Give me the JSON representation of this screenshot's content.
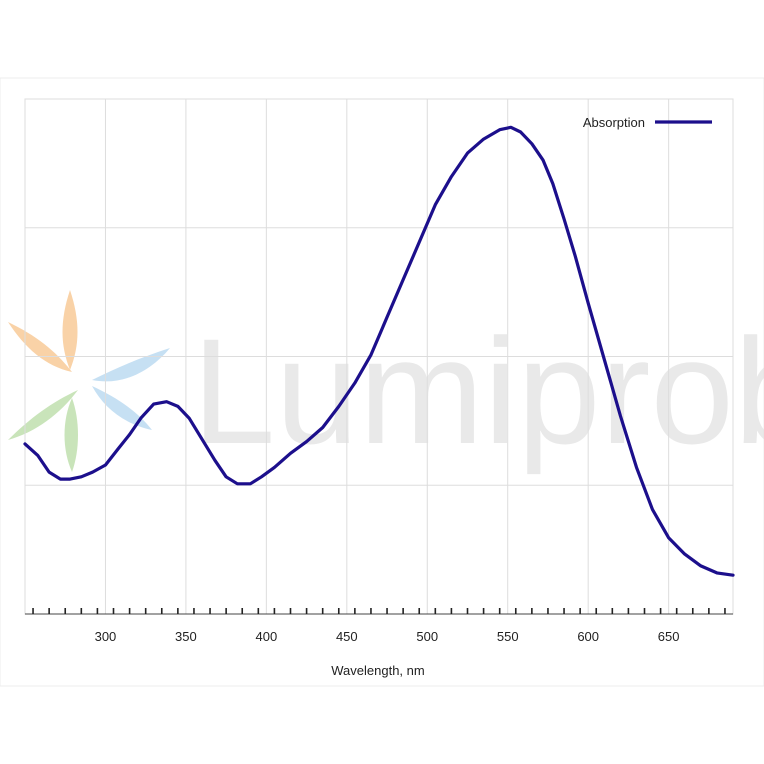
{
  "chart_data": {
    "type": "line",
    "xlabel": "Wavelength, nm",
    "ylabel": "",
    "xlim": [
      250,
      690
    ],
    "ylim": [
      0,
      1
    ],
    "x_ticks": [
      300,
      350,
      400,
      450,
      500,
      550,
      600,
      650
    ],
    "y_gridlines": 4,
    "grid": true,
    "legend_position": "top-right",
    "series": [
      {
        "name": "Absorption",
        "color": "#1c0f8c",
        "x": [
          250,
          258,
          265,
          272,
          278,
          285,
          292,
          300,
          308,
          315,
          322,
          330,
          338,
          345,
          352,
          360,
          368,
          375,
          382,
          390,
          397,
          405,
          415,
          425,
          435,
          445,
          455,
          465,
          475,
          485,
          495,
          505,
          515,
          525,
          535,
          545,
          552,
          558,
          565,
          572,
          578,
          585,
          592,
          600,
          610,
          620,
          630,
          640,
          650,
          660,
          670,
          680,
          690
        ],
        "y": [
          0.32,
          0.295,
          0.26,
          0.245,
          0.245,
          0.25,
          0.26,
          0.275,
          0.31,
          0.34,
          0.375,
          0.405,
          0.41,
          0.4,
          0.375,
          0.33,
          0.285,
          0.25,
          0.235,
          0.235,
          0.25,
          0.27,
          0.3,
          0.325,
          0.355,
          0.4,
          0.45,
          0.51,
          0.59,
          0.67,
          0.75,
          0.83,
          0.89,
          0.94,
          0.97,
          0.99,
          0.995,
          0.985,
          0.96,
          0.925,
          0.875,
          0.8,
          0.72,
          0.62,
          0.5,
          0.38,
          0.27,
          0.18,
          0.12,
          0.085,
          0.06,
          0.045,
          0.04
        ]
      }
    ]
  },
  "watermark": {
    "text": "Lumiprobe",
    "colors": [
      "#f7c48a",
      "#b4d6f0",
      "#b8dca4"
    ]
  }
}
